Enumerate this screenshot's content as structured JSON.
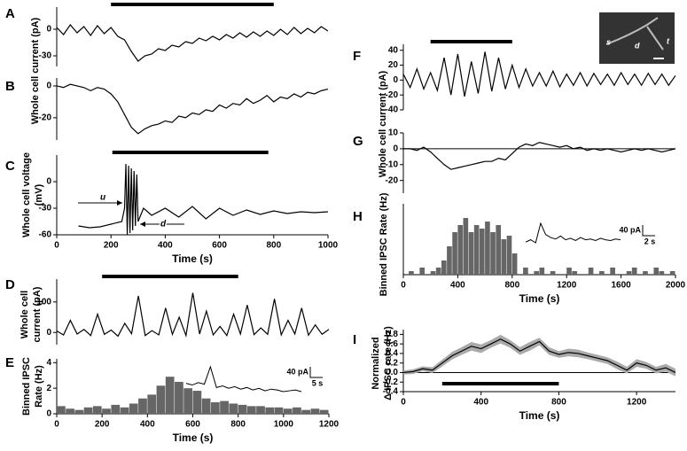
{
  "chart_data": [
    {
      "type": "line",
      "label": "A",
      "ylabel": [
        "Whole cell current (pA)"
      ],
      "xlim": [
        0,
        1000
      ],
      "ylim": [
        -42,
        25
      ],
      "yticks": [
        -30,
        0
      ],
      "bar": [
        200,
        800
      ],
      "x": [
        0,
        25,
        50,
        75,
        100,
        125,
        150,
        175,
        200,
        225,
        250,
        275,
        300,
        325,
        350,
        375,
        400,
        425,
        450,
        475,
        500,
        525,
        550,
        575,
        600,
        625,
        650,
        675,
        700,
        725,
        750,
        775,
        800,
        825,
        850,
        875,
        900,
        925,
        950,
        975,
        1000
      ],
      "values": [
        2,
        -6,
        5,
        -4,
        3,
        -7,
        4,
        -5,
        2,
        -8,
        -12,
        -25,
        -36,
        -30,
        -28,
        -22,
        -24,
        -18,
        -20,
        -14,
        -16,
        -10,
        -13,
        -8,
        -12,
        -6,
        -10,
        -4,
        -9,
        -3,
        -8,
        -2,
        -7,
        0,
        -6,
        2,
        -5,
        1,
        -4,
        3,
        -2
      ],
      "color": "#000000"
    },
    {
      "type": "line",
      "label": "B",
      "xlim": [
        0,
        1000
      ],
      "ylim": [
        -34,
        5
      ],
      "yticks": [
        -20,
        0
      ],
      "x": [
        0,
        25,
        50,
        75,
        100,
        125,
        150,
        175,
        200,
        225,
        250,
        275,
        300,
        325,
        350,
        375,
        400,
        425,
        450,
        475,
        500,
        525,
        550,
        575,
        600,
        625,
        650,
        675,
        700,
        725,
        750,
        775,
        800,
        825,
        850,
        875,
        900,
        925,
        950,
        975,
        1000
      ],
      "values": [
        0,
        -1,
        1,
        0,
        -1,
        -3,
        -1,
        -2,
        -5,
        -10,
        -18,
        -26,
        -30,
        -27,
        -25,
        -24,
        -22,
        -23,
        -19,
        -20,
        -17,
        -18,
        -15,
        -16,
        -12,
        -14,
        -11,
        -12,
        -8,
        -11,
        -9,
        -6,
        -10,
        -7,
        -8,
        -5,
        -7,
        -4,
        -5,
        -3,
        -2
      ],
      "color": "#000000"
    },
    {
      "type": "line",
      "label": "C",
      "ylabel": [
        "Whole cell voltage",
        "(mV)"
      ],
      "xlabel": "Time (s)",
      "xlim": [
        0,
        1000
      ],
      "ylim": [
        -60,
        30
      ],
      "yticks": [
        -60,
        -30,
        0
      ],
      "xticks": [
        0,
        200,
        400,
        600,
        800,
        1000
      ],
      "bar": [
        205,
        780
      ],
      "x": [
        80,
        120,
        160,
        200,
        240,
        250,
        255,
        260,
        265,
        270,
        275,
        280,
        285,
        290,
        295,
        300,
        320,
        350,
        400,
        450,
        500,
        550,
        600,
        650,
        700,
        750,
        800,
        850,
        900,
        950,
        1000
      ],
      "values": [
        -50,
        -52,
        -51,
        -48,
        -45,
        -30,
        20,
        -60,
        18,
        -58,
        15,
        -55,
        12,
        -50,
        8,
        -45,
        -30,
        -38,
        -30,
        -40,
        -28,
        -42,
        -30,
        -38,
        -32,
        -37,
        -33,
        -36,
        -34,
        -35,
        -34
      ],
      "annotations": [
        "u",
        "d"
      ],
      "color": "#000000"
    },
    {
      "type": "line",
      "label": "D",
      "ylabel": [
        "Whole cell",
        "current (pA)"
      ],
      "xlim": [
        0,
        1200
      ],
      "ylim": [
        -40,
        175
      ],
      "yticks": [
        0,
        100
      ],
      "bar": [
        200,
        800
      ],
      "x": [
        0,
        30,
        60,
        90,
        120,
        150,
        180,
        210,
        240,
        270,
        300,
        330,
        360,
        390,
        420,
        450,
        480,
        510,
        540,
        570,
        600,
        630,
        660,
        690,
        720,
        750,
        780,
        810,
        840,
        870,
        900,
        930,
        960,
        990,
        1020,
        1050,
        1080,
        1110,
        1140,
        1170,
        1200
      ],
      "values": [
        5,
        -8,
        40,
        -5,
        10,
        -10,
        60,
        -6,
        8,
        -12,
        30,
        -4,
        120,
        -10,
        6,
        -8,
        80,
        -6,
        50,
        -10,
        130,
        -5,
        70,
        -8,
        20,
        -10,
        60,
        -5,
        90,
        -7,
        15,
        -6,
        110,
        -8,
        40,
        -5,
        80,
        -9,
        25,
        -6,
        10
      ],
      "color": "#000000"
    },
    {
      "type": "histogram",
      "label": "E",
      "ylabel": [
        "Binned IPSC",
        "Rate (Hz)"
      ],
      "xlabel": "Time (s)",
      "xlim": [
        0,
        1200
      ],
      "ylim": [
        0,
        4.3
      ],
      "yticks": [
        0,
        2,
        4
      ],
      "xticks": [
        0,
        200,
        400,
        600,
        800,
        1000,
        1200
      ],
      "bins": [
        0,
        40,
        80,
        120,
        160,
        200,
        240,
        280,
        320,
        360,
        400,
        440,
        480,
        520,
        560,
        600,
        640,
        680,
        720,
        760,
        800,
        840,
        880,
        920,
        960,
        1000,
        1040,
        1080,
        1120,
        1160,
        1200
      ],
      "values": [
        0.6,
        0.4,
        0.3,
        0.5,
        0.6,
        0.4,
        0.7,
        0.5,
        0.8,
        1.2,
        1.5,
        2.2,
        2.9,
        2.5,
        2.0,
        1.8,
        1.2,
        0.9,
        1.0,
        0.8,
        0.7,
        0.6,
        0.6,
        0.5,
        0.5,
        0.4,
        0.5,
        0.3,
        0.4,
        0.3
      ],
      "color": "#666666",
      "inset": {
        "values": [
          0,
          -2,
          1,
          -1,
          20,
          -5,
          -3,
          -6,
          -4,
          -7,
          -5,
          -8,
          -6,
          -9,
          -7,
          -8,
          -10,
          -9,
          -8,
          -10
        ],
        "scale_labels": [
          "40 pA",
          "5 s"
        ]
      }
    },
    {
      "type": "line",
      "label": "F",
      "ylabel": [
        "Whole cell current (pA)"
      ],
      "xlim": [
        0,
        2000
      ],
      "ylim": [
        -40,
        48
      ],
      "yticks": [
        -40,
        -20,
        0,
        20,
        40
      ],
      "bar": [
        200,
        800
      ],
      "x": [
        0,
        50,
        100,
        150,
        200,
        250,
        300,
        350,
        400,
        450,
        500,
        550,
        600,
        650,
        700,
        750,
        800,
        850,
        900,
        950,
        1000,
        1050,
        1100,
        1150,
        1200,
        1250,
        1300,
        1350,
        1400,
        1450,
        1500,
        1550,
        1600,
        1650,
        1700,
        1750,
        1800,
        1850,
        1900,
        1950,
        2000
      ],
      "values": [
        8,
        -10,
        15,
        -12,
        10,
        -14,
        30,
        -20,
        35,
        -22,
        25,
        -18,
        38,
        -15,
        30,
        -12,
        20,
        -10,
        15,
        -8,
        10,
        -8,
        12,
        -9,
        8,
        -7,
        10,
        -8,
        9,
        -6,
        8,
        -7,
        10,
        -6,
        8,
        -7,
        9,
        -6,
        8,
        -7,
        6
      ],
      "color": "#000000",
      "image_labels": [
        "s",
        "d",
        "t"
      ]
    },
    {
      "type": "line",
      "label": "G",
      "xlim": [
        0,
        2000
      ],
      "ylim": [
        -28,
        10
      ],
      "yticks": [
        -20,
        -10,
        0,
        10
      ],
      "zero_line": true,
      "x": [
        0,
        50,
        100,
        150,
        200,
        250,
        300,
        350,
        400,
        450,
        500,
        550,
        600,
        650,
        700,
        750,
        800,
        850,
        900,
        950,
        1000,
        1050,
        1100,
        1150,
        1200,
        1250,
        1300,
        1350,
        1400,
        1450,
        1500,
        1550,
        1600,
        1650,
        1700,
        1750,
        1800,
        1850,
        1900,
        1950,
        2000
      ],
      "values": [
        0,
        0,
        -1,
        1,
        -2,
        -6,
        -10,
        -13,
        -12,
        -11,
        -10,
        -9,
        -8,
        -8,
        -6,
        -7,
        -3,
        1,
        3,
        2,
        4,
        3,
        2,
        1,
        2,
        0,
        1,
        -1,
        0,
        -1,
        0,
        -1,
        -2,
        -1,
        0,
        -1,
        0,
        -1,
        -2,
        -1,
        0
      ],
      "color": "#000000"
    },
    {
      "type": "histogram",
      "label": "H",
      "ylabel": [
        "Binned IPSC Rate (Hz)"
      ],
      "xlabel": "Time (s)",
      "xlim": [
        0,
        2000
      ],
      "ylim": [
        0,
        1
      ],
      "xticks": [
        0,
        400,
        800,
        1200,
        1600,
        2000
      ],
      "bins": [
        0,
        40,
        80,
        120,
        160,
        200,
        240,
        280,
        320,
        360,
        400,
        440,
        480,
        520,
        560,
        600,
        640,
        680,
        720,
        760,
        800,
        840,
        880,
        920,
        960,
        1000,
        1040,
        1080,
        1120,
        1160,
        1200,
        1240,
        1280,
        1320,
        1360,
        1400,
        1440,
        1480,
        1520,
        1560,
        1600,
        1640,
        1680,
        1720,
        1760,
        1800,
        1840,
        1880,
        1920,
        1960,
        2000
      ],
      "values": [
        0,
        0.05,
        0,
        0.1,
        0,
        0.05,
        0.1,
        0.2,
        0.4,
        0.6,
        0.7,
        0.8,
        0.6,
        0.7,
        0.65,
        0.75,
        0.6,
        0.7,
        0.5,
        0.55,
        0.3,
        0,
        0.1,
        0,
        0.05,
        0.1,
        0,
        0.05,
        0,
        0,
        0.1,
        0.05,
        0,
        0,
        0.1,
        0,
        0.05,
        0,
        0.1,
        0,
        0,
        0.05,
        0.1,
        0,
        0.05,
        0,
        0.1,
        0.05,
        0,
        0.05
      ],
      "color": "#666666",
      "inset": {
        "values": [
          0,
          3,
          -1,
          25,
          10,
          6,
          4,
          8,
          3,
          5,
          2,
          6,
          3,
          4,
          2,
          5,
          3,
          2,
          4,
          3
        ],
        "scale_labels": [
          "40 pA",
          "2 s"
        ]
      }
    },
    {
      "type": "band",
      "label": "I",
      "ylabel": [
        "Normalized",
        "Δ IPSC rate (Hz)"
      ],
      "xlabel": "Time (s)",
      "xlim": [
        0,
        1400
      ],
      "ylim": [
        -0.4,
        0.9
      ],
      "yticks": [
        -0.4,
        -0.2,
        {
          "value": 0,
          "label": "0.0"
        },
        0.2,
        0.4,
        0.6,
        0.8
      ],
      "xticks": [
        0,
        400,
        800,
        1200
      ],
      "bar": [
        200,
        800
      ],
      "zero_line": true,
      "bar_position": "bottom",
      "x": [
        0,
        50,
        100,
        150,
        200,
        250,
        300,
        350,
        400,
        450,
        500,
        550,
        600,
        650,
        700,
        750,
        800,
        850,
        900,
        950,
        1000,
        1050,
        1100,
        1150,
        1200,
        1250,
        1300,
        1350,
        1400
      ],
      "values": [
        0,
        0.02,
        0.08,
        0.05,
        0.2,
        0.35,
        0.45,
        0.55,
        0.5,
        0.6,
        0.7,
        0.6,
        0.45,
        0.55,
        0.65,
        0.45,
        0.38,
        0.42,
        0.4,
        0.35,
        0.3,
        0.25,
        0.15,
        0.05,
        0.2,
        0.15,
        0.05,
        0.1,
        0.0
      ],
      "errors": [
        0.04,
        0.05,
        0.05,
        0.06,
        0.07,
        0.08,
        0.08,
        0.09,
        0.09,
        0.08,
        0.09,
        0.08,
        0.08,
        0.09,
        0.08,
        0.08,
        0.07,
        0.08,
        0.08,
        0.07,
        0.07,
        0.07,
        0.08,
        0.07,
        0.08,
        0.07,
        0.07,
        0.08,
        0.08
      ],
      "color": "#000000",
      "band_color": "#aaaaaa"
    }
  ]
}
